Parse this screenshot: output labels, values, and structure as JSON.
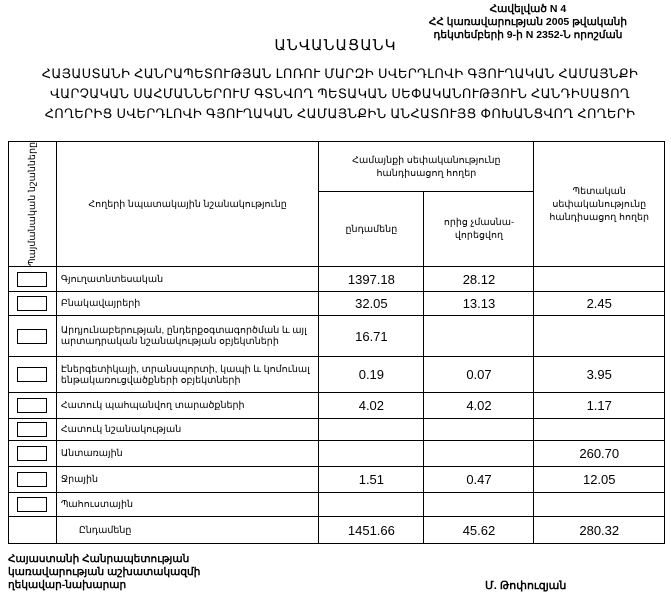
{
  "annex": {
    "line1": "Հավելված N 4",
    "line2": "ՀՀ կառավարության 2005 թվականի",
    "line3": "դեկտեմբերի 9-ի N 2352-Ն որոշման"
  },
  "title": "ԱՆՎԱՆԱՑԱՆԿ",
  "subtitle": "ՀԱՅԱՍՏԱՆԻ ՀԱՆՐԱՊԵՏՈՒԹՅԱՆ ԼՈՌՈՒ ՄԱՐԶԻ ՍՎԵՐԴԼՈՎԻ ԳՅՈՒՂԱԿԱՆ ՀԱՄԱՅՆՔԻ ՎԱՐՉԱԿԱՆ ՍԱՀՄԱՆՆԵՐՈՒՄ ԳՏՆՎՈՂ ՊԵՏԱԿԱՆ ՍԵՓԱԿԱՆՈՒԹՅՈՒՆ ՀԱՆԴԻՍԱՑՈՂ ՀՈՂԵՐԻՑ ՍՎԵՐԴԼՈՎԻ ԳՅՈՒՂԱԿԱՆ ՀԱՄԱՅՆՔԻՆ ԱՆՀԱՏՈՒՅՑ ՓՈԽԱՆՑՎՈՂ ՀՈՂԵՐԻ",
  "table": {
    "headers": {
      "symbols": "Պայմանական նշանները",
      "purpose": "Հողերի նպատակային նշանակությունը",
      "community": "Համայնքի սեփականությունը հանդիսացող հողեր",
      "total": "ընդամենը",
      "non_privatized": "որից չմասնա-վորեցվող",
      "state": "Պետական սեփականությունը հանդիսացող հողեր"
    },
    "rows": [
      {
        "purpose": "Գյուղատնտեսական",
        "total": "1397.18",
        "non_privatized": "28.12",
        "state": ""
      },
      {
        "purpose": "Բնակավայրերի",
        "total": "32.05",
        "non_privatized": "13.13",
        "state": "2.45"
      },
      {
        "purpose": "Արդյունաբերության, ընդերքօգտագործման և այլ արտադրական նշանակության օբյեկտների",
        "total": "16.71",
        "non_privatized": "",
        "state": ""
      },
      {
        "purpose": "Էներգետիկայի, տրանսպորտի, կապի և կոմունալ ենթակառուցվածքների օբյեկտների",
        "total": "0.19",
        "non_privatized": "0.07",
        "state": "3.95"
      },
      {
        "purpose": "Հատուկ պահպանվող տարածքների",
        "total": "4.02",
        "non_privatized": "4.02",
        "state": "1.17"
      },
      {
        "purpose": "Հատուկ նշանակության",
        "total": "",
        "non_privatized": "",
        "state": ""
      },
      {
        "purpose": "Անտառային",
        "total": "",
        "non_privatized": "",
        "state": "260.70"
      },
      {
        "purpose": "Ջրային",
        "total": "1.51",
        "non_privatized": "0.47",
        "state": "12.05"
      },
      {
        "purpose": "Պահուստային",
        "total": "",
        "non_privatized": "",
        "state": ""
      }
    ],
    "totals": {
      "label": "Ընդամենը",
      "total": "1451.66",
      "non_privatized": "45.62",
      "state": "280.32"
    }
  },
  "footer": {
    "line1": "Հայաստանի Հանրապետության",
    "line2": "կառավարության աշխատակազմի",
    "line3": "ղեկավար-նախարար",
    "signer": "Մ. Թոփուզյան"
  }
}
